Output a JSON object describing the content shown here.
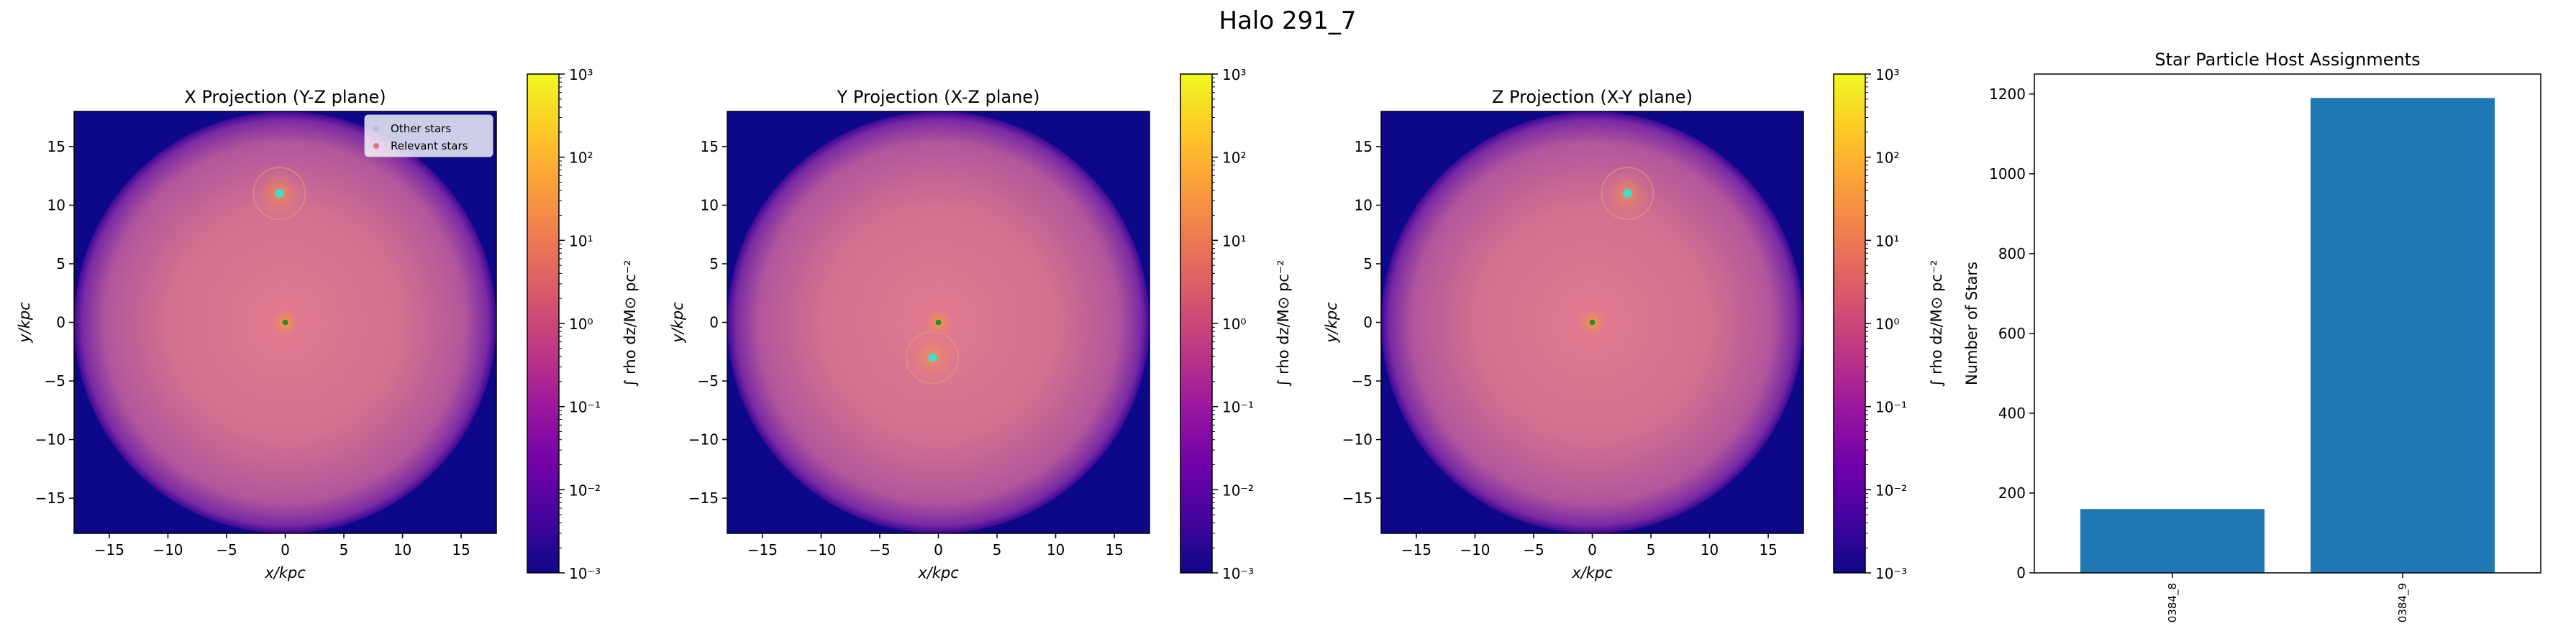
{
  "figure_title": "Halo 291_7",
  "colors": {
    "cmap": [
      "#0d0887",
      "#46039f",
      "#7201a8",
      "#9c179e",
      "#bd3786",
      "#d8576b",
      "#ed7953",
      "#fb9f3a",
      "#fdca26",
      "#f0f921"
    ],
    "halo_disk": "#d77399",
    "background": "#0d0887",
    "other_stars": "#b0c4de",
    "relevant_stars": "#e07080",
    "hot_spot_teal": "#3fe0c8",
    "center_dot": "#2e8b2e",
    "bar": "#1f77b4"
  },
  "legend": {
    "other_label": "Other stars",
    "relevant_label": "Relevant stars"
  },
  "chart_data": [
    {
      "type": "heatmap",
      "title": "X Projection (Y-Z plane)",
      "xlabel": "x/kpc",
      "ylabel": "y/kpc",
      "xlim": [
        -18,
        18
      ],
      "ylim": [
        -18,
        18
      ],
      "xticks": [
        "−15",
        "−10",
        "−5",
        "0",
        "5",
        "10",
        "15"
      ],
      "yticks": [
        "15",
        "10",
        "5",
        "0",
        "−5",
        "−10",
        "−15"
      ],
      "colorbar": {
        "label": "∫ rho dz/M⊙ pc⁻²",
        "scale": "log",
        "range": [
          0.001,
          1000
        ],
        "ticks": [
          "10³",
          "10²",
          "10¹",
          "10⁰",
          "10⁻¹",
          "10⁻²",
          "10⁻³"
        ]
      },
      "halo_radius_kpc": 18,
      "main_host_kpc": [
        0,
        0
      ],
      "secondary_host_kpc": [
        -0.5,
        11
      ],
      "legend": true
    },
    {
      "type": "heatmap",
      "title": "Y Projection (X-Z plane)",
      "xlabel": "x/kpc",
      "ylabel": "y/kpc",
      "xlim": [
        -18,
        18
      ],
      "ylim": [
        -18,
        18
      ],
      "xticks": [
        "−15",
        "−10",
        "−5",
        "0",
        "5",
        "10",
        "15"
      ],
      "yticks": [
        "15",
        "10",
        "5",
        "0",
        "−5",
        "−10",
        "−15"
      ],
      "colorbar": {
        "label": "∫ rho dz/M⊙ pc⁻²",
        "scale": "log",
        "range": [
          0.001,
          1000
        ],
        "ticks": [
          "10³",
          "10²",
          "10¹",
          "10⁰",
          "10⁻¹",
          "10⁻²",
          "10⁻³"
        ]
      },
      "halo_radius_kpc": 18,
      "main_host_kpc": [
        0,
        0
      ],
      "secondary_host_kpc": [
        -0.5,
        -3
      ],
      "legend": false
    },
    {
      "type": "heatmap",
      "title": "Z Projection (X-Y plane)",
      "xlabel": "x/kpc",
      "ylabel": "y/kpc",
      "xlim": [
        -18,
        18
      ],
      "ylim": [
        -18,
        18
      ],
      "xticks": [
        "−15",
        "−10",
        "−5",
        "0",
        "5",
        "10",
        "15"
      ],
      "yticks": [
        "15",
        "10",
        "5",
        "0",
        "−5",
        "−10",
        "−15"
      ],
      "colorbar": {
        "label": "∫ rho dz/M⊙ pc⁻²",
        "scale": "log",
        "range": [
          0.001,
          1000
        ],
        "ticks": [
          "10³",
          "10²",
          "10¹",
          "10⁰",
          "10⁻¹",
          "10⁻²",
          "10⁻³"
        ]
      },
      "halo_radius_kpc": 18,
      "main_host_kpc": [
        0,
        0
      ],
      "secondary_host_kpc": [
        3,
        11
      ],
      "legend": false
    },
    {
      "type": "bar",
      "title": "Star Particle Host Assignments",
      "xlabel": "",
      "ylabel": "Number of Stars",
      "categories": [
        "0384_8",
        "0384_9"
      ],
      "values": [
        160,
        1190
      ],
      "ylim": [
        0,
        1250
      ],
      "yticks": [
        0,
        200,
        400,
        600,
        800,
        1000,
        1200
      ]
    }
  ]
}
